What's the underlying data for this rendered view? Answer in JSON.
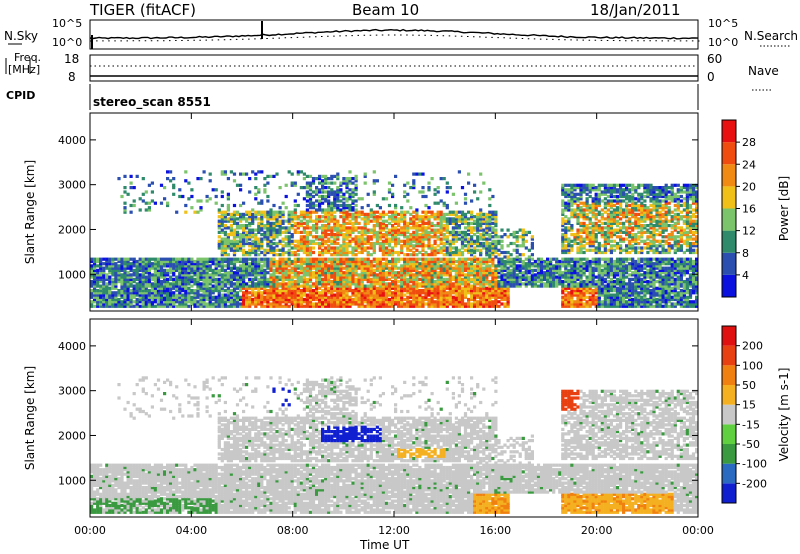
{
  "header": {
    "radar": "TIGER (fitACF)",
    "beam": "Beam 10",
    "date": "18/Jan/2011"
  },
  "noise_panel": {
    "left_label": "N.Sky",
    "right_label": "N.Search",
    "left_ticks": [
      "10^5",
      "10^0"
    ],
    "right_ticks": [
      "10^5",
      "10^0"
    ]
  },
  "freq_panel": {
    "left_label_1": "Freq.",
    "left_label_2": "[MHz]",
    "right_label": "Nave",
    "left_ticks": [
      "18",
      "8"
    ],
    "right_ticks": [
      "60",
      "0"
    ]
  },
  "cpid_panel": {
    "label": "CPID",
    "value": "stereo_scan 8551"
  },
  "chart_data": [
    {
      "type": "heatmap",
      "title": "Power",
      "ylabel": "Slant Range [km]",
      "xlabel": "Time UT",
      "x_ticks": [
        "00:00",
        "04:00",
        "08:00",
        "12:00",
        "16:00",
        "20:00",
        "00:00"
      ],
      "y_ticks": [
        1000,
        2000,
        3000,
        4000
      ],
      "ylim": [
        180,
        4600
      ],
      "xlim_hours": [
        0,
        24
      ],
      "colorbar_label": "Power [dB]",
      "colorbar_ticks": [
        4,
        8,
        12,
        16,
        20,
        24,
        28
      ],
      "colorbar_colors": [
        "#0b12e0",
        "#2a4fb0",
        "#2e8a6a",
        "#7cc46c",
        "#f0c018",
        "#f08a12",
        "#f04c10",
        "#e81010"
      ]
    },
    {
      "type": "heatmap",
      "title": "Velocity",
      "ylabel": "Slant Range [km]",
      "xlabel": "Time UT",
      "x_ticks": [
        "00:00",
        "04:00",
        "08:00",
        "12:00",
        "16:00",
        "20:00",
        "00:00"
      ],
      "y_ticks": [
        1000,
        2000,
        3000,
        4000
      ],
      "ylim": [
        180,
        4600
      ],
      "xlim_hours": [
        0,
        24
      ],
      "colorbar_label": "Velocity [m s-1]",
      "colorbar_ticks": [
        200,
        100,
        50,
        15,
        -15,
        -50,
        -100,
        -200
      ],
      "colorbar_colors": [
        "#1020d0",
        "#2a6ac0",
        "#3a9a40",
        "#60d040",
        "#c8c8c8",
        "#f4b020",
        "#f08010",
        "#e84010",
        "#e01010"
      ]
    }
  ],
  "x_axis": {
    "label": "Time UT"
  },
  "colors": {
    "power_colors": [
      "#0b12e0",
      "#2a4fb0",
      "#2e8a6a",
      "#7cc46c",
      "#f0c018",
      "#f08a12",
      "#f04c10",
      "#e81010"
    ],
    "vel_colors": [
      "#c8c8c8",
      "#f4b020",
      "#f08010",
      "#e84010",
      "#3a9a40",
      "#1020d0"
    ]
  }
}
